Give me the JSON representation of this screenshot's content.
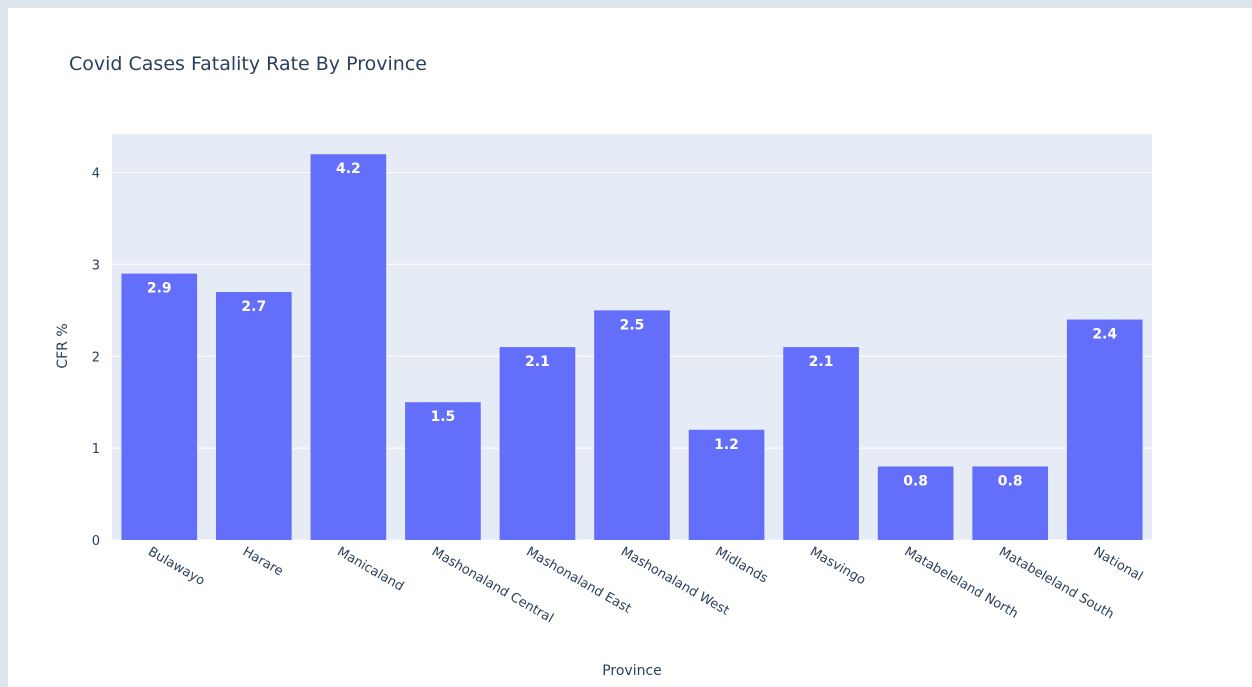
{
  "chart_data": {
    "type": "bar",
    "title": "Covid Cases Fatality Rate By Province",
    "xlabel": "Province",
    "ylabel": "CFR %",
    "categories": [
      "Bulawayo",
      "Harare",
      "Manicaland",
      "Mashonaland Central",
      "Mashonaland East",
      "Mashonaland West",
      "Midlands",
      "Masvingo",
      "Matabeleland North",
      "Matabeleland South",
      "National"
    ],
    "values": [
      2.9,
      2.7,
      4.2,
      1.5,
      2.1,
      2.5,
      1.2,
      2.1,
      0.8,
      0.8,
      2.4
    ],
    "data_labels": [
      "2.9",
      "2.7",
      "4.2",
      "1.5",
      "2.1",
      "2.5",
      "1.2",
      "2.1",
      "0.8",
      "0.8",
      "2.4"
    ],
    "ylim": [
      0,
      4.42
    ],
    "yticks": [
      0,
      1,
      2,
      3,
      4
    ],
    "ytick_labels": [
      "0",
      "1",
      "2",
      "3",
      "4"
    ],
    "grid": true,
    "colors": {
      "bar": "#636efa",
      "plot_background": "#e5ecf6",
      "gridline": "#ffffff",
      "text": "#2a3f5f",
      "page_background": "#dfe5ee"
    }
  }
}
